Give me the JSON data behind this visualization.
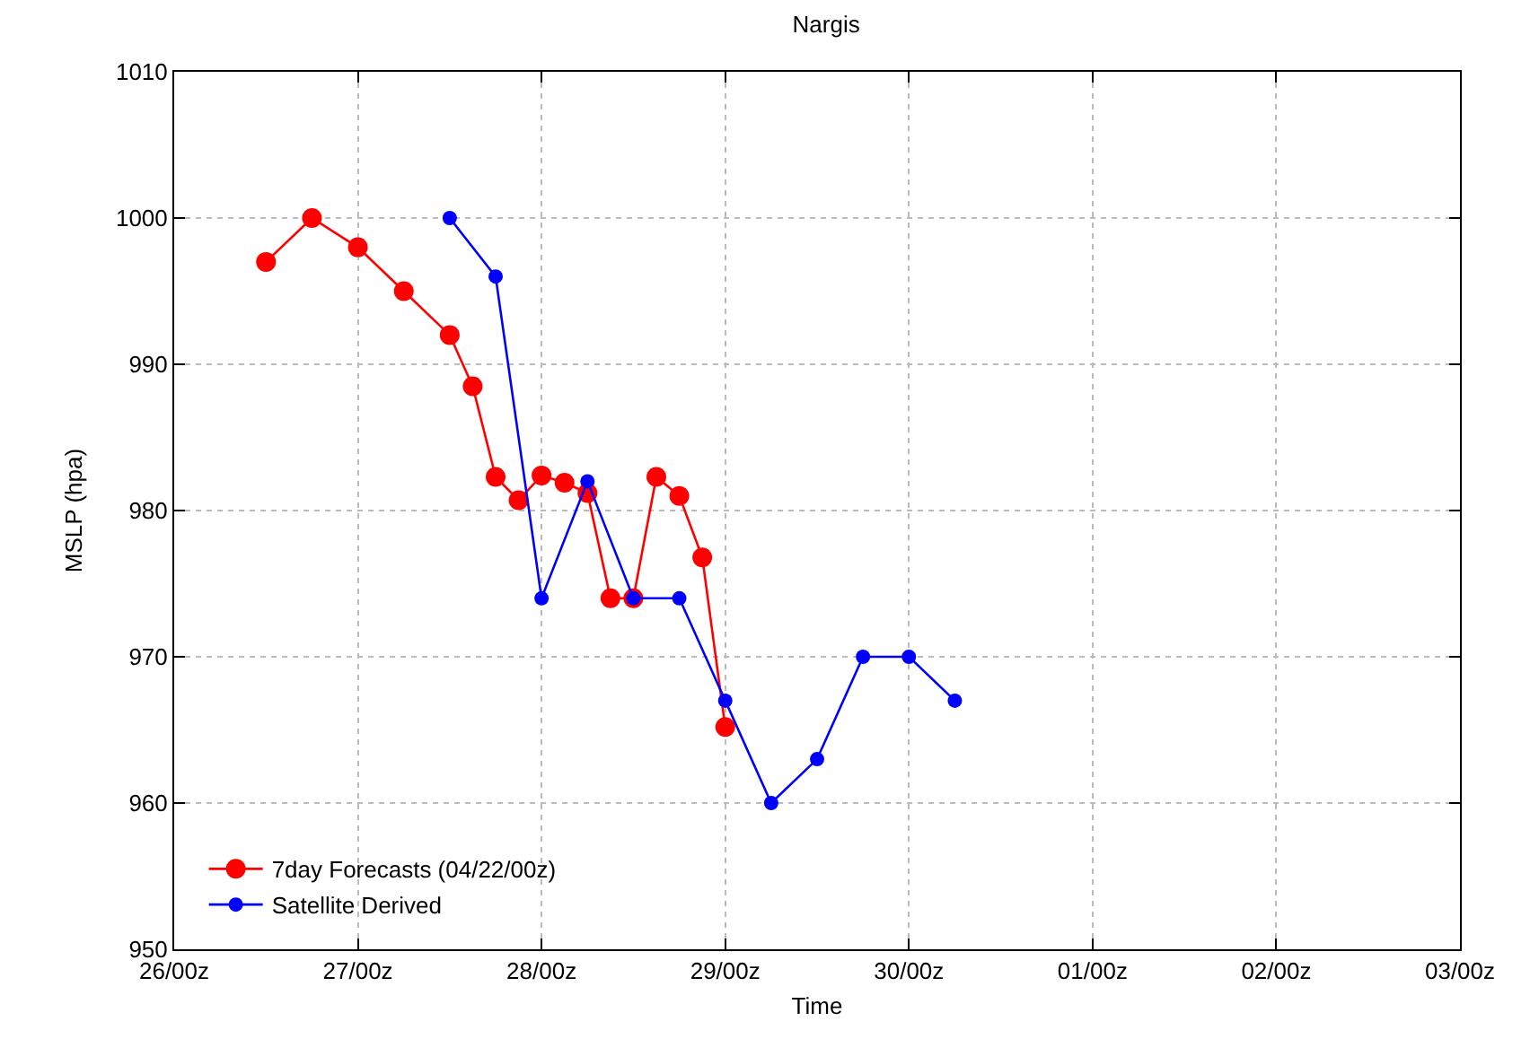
{
  "chart_data": {
    "type": "line",
    "title": "Nargis",
    "xlabel": "Time",
    "ylabel": "MSLP (hpa)",
    "series": [
      {
        "name": "7day Forecasts (04/22/00z)",
        "color": "#ff0000",
        "x": [
          "--04-26T12:00",
          "--04-26T18:00",
          "--04-27T00:00",
          "--04-27T06:00",
          "--04-27T12:00",
          "--04-27T15:00",
          "--04-27T18:00",
          "--04-27T21:00",
          "--04-28T00:00",
          "--04-28T03:00",
          "--04-28T06:00",
          "--04-28T09:00",
          "--04-28T12:00",
          "--04-28T15:00",
          "--04-28T18:00",
          "--04-28T21:00",
          "--04-29T00:00"
        ],
        "values": [
          997,
          1000,
          998,
          995,
          992,
          988.5,
          982.3,
          980.7,
          982.4,
          981.9,
          981.2,
          974,
          974,
          982.3,
          981,
          976.8,
          965.2
        ]
      },
      {
        "name": "Satellite Derived",
        "color": "#0000ff",
        "x": [
          "--04-27T12:00",
          "--04-27T18:00",
          "--04-28T00:00",
          "--04-28T06:00",
          "--04-28T12:00",
          "--04-28T18:00",
          "--04-29T00:00",
          "--04-29T06:00",
          "--04-29T12:00",
          "--04-29T18:00",
          "--04-30T00:00",
          "--04-30T06:00"
        ],
        "values": [
          1000,
          996,
          974,
          982,
          974,
          974,
          967,
          960,
          963,
          970,
          970,
          967
        ]
      }
    ],
    "xlim": [
      "--04-26",
      "--05-03"
    ],
    "xticks": [
      {
        "value": "--04-26",
        "label": "26/00z"
      },
      {
        "value": "--04-27",
        "label": "27/00z"
      },
      {
        "value": "--04-28",
        "label": "28/00z"
      },
      {
        "value": "--04-29",
        "label": "29/00z"
      },
      {
        "value": "--04-30",
        "label": "30/00z"
      },
      {
        "value": "--05-01",
        "label": "01/00z"
      },
      {
        "value": "--05-02",
        "label": "02/00z"
      },
      {
        "value": "--05-03",
        "label": "03/00z"
      }
    ],
    "ylim": [
      950,
      1010
    ],
    "yticks": [
      950,
      960,
      970,
      980,
      990,
      1000,
      1010
    ],
    "grid": true,
    "legend": "bottom left",
    "marker": "circle",
    "line_style": "solid"
  }
}
